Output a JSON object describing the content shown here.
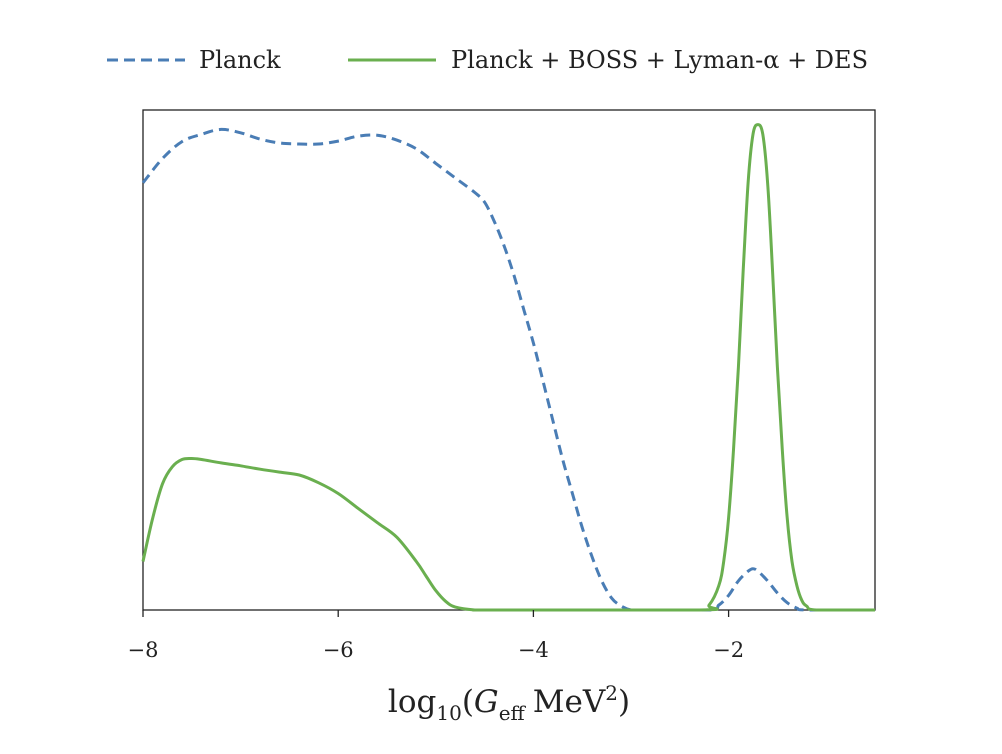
{
  "chart_data": {
    "type": "line",
    "title": "",
    "xlabel": "log10(G_eff MeV^2)",
    "xlabel_parts": {
      "base": "log",
      "base_sub": "10",
      "paren_open": "(",
      "var": "G",
      "var_sub": "eff",
      "unit": "MeV",
      "unit_sup": "2",
      "paren_close": ")"
    },
    "ylabel": "",
    "xlim": [
      -8.0,
      -0.5
    ],
    "ylim": [
      0,
      1.03
    ],
    "xticks": [
      -8,
      -6,
      -4,
      -2
    ],
    "xtick_labels": [
      "−8",
      "−6",
      "−4",
      "−2"
    ],
    "yticks_visible": false,
    "grid": false,
    "legend_position": "top-center, outside",
    "series": [
      {
        "name": "Planck",
        "style": "dashed",
        "color": "#4a7db5",
        "x": [
          -8.0,
          -7.8,
          -7.6,
          -7.4,
          -7.2,
          -7.0,
          -6.8,
          -6.6,
          -6.4,
          -6.2,
          -6.0,
          -5.8,
          -5.6,
          -5.4,
          -5.2,
          -5.0,
          -4.8,
          -4.6,
          -4.5,
          -4.4,
          -4.3,
          -4.2,
          -4.1,
          -4.0,
          -3.9,
          -3.8,
          -3.7,
          -3.6,
          -3.5,
          -3.4,
          -3.3,
          -3.2,
          -3.1,
          -3.0,
          -2.9,
          -2.2,
          -2.1,
          -2.0,
          -1.9,
          -1.8,
          -1.75,
          -1.7,
          -1.6,
          -1.5,
          -1.4,
          -1.3,
          -1.2,
          -0.5
        ],
        "y": [
          0.88,
          0.93,
          0.965,
          0.98,
          0.99,
          0.983,
          0.97,
          0.962,
          0.96,
          0.96,
          0.966,
          0.976,
          0.978,
          0.968,
          0.95,
          0.92,
          0.89,
          0.86,
          0.84,
          0.8,
          0.75,
          0.69,
          0.62,
          0.55,
          0.47,
          0.39,
          0.31,
          0.24,
          0.17,
          0.11,
          0.06,
          0.025,
          0.008,
          0.0,
          0.0,
          0.0,
          0.01,
          0.03,
          0.06,
          0.08,
          0.085,
          0.08,
          0.06,
          0.035,
          0.015,
          0.004,
          0.0,
          0.0
        ]
      },
      {
        "name": "Planck + BOSS + Lyman-α + DES",
        "style": "solid",
        "color": "#6aaf4f",
        "x": [
          -8.0,
          -7.9,
          -7.8,
          -7.7,
          -7.6,
          -7.5,
          -7.4,
          -7.2,
          -7.0,
          -6.8,
          -6.6,
          -6.4,
          -6.2,
          -6.0,
          -5.8,
          -5.6,
          -5.4,
          -5.2,
          -5.1,
          -5.0,
          -4.9,
          -4.8,
          -4.6,
          -4.4,
          -2.3,
          -2.2,
          -2.1,
          -2.05,
          -2.0,
          -1.95,
          -1.9,
          -1.85,
          -1.8,
          -1.75,
          -1.7,
          -1.65,
          -1.6,
          -1.55,
          -1.5,
          -1.45,
          -1.4,
          -1.35,
          -1.3,
          -1.25,
          -1.2,
          -1.1,
          -0.5
        ],
        "y": [
          0.1,
          0.19,
          0.26,
          0.295,
          0.31,
          0.312,
          0.31,
          0.303,
          0.297,
          0.29,
          0.284,
          0.278,
          0.262,
          0.24,
          0.21,
          0.18,
          0.15,
          0.1,
          0.07,
          0.04,
          0.018,
          0.006,
          0.0,
          0.0,
          0.0,
          0.01,
          0.05,
          0.1,
          0.19,
          0.33,
          0.5,
          0.7,
          0.88,
          0.98,
          1.0,
          0.98,
          0.88,
          0.7,
          0.5,
          0.33,
          0.19,
          0.1,
          0.05,
          0.02,
          0.008,
          0.0,
          0.0
        ]
      }
    ]
  }
}
